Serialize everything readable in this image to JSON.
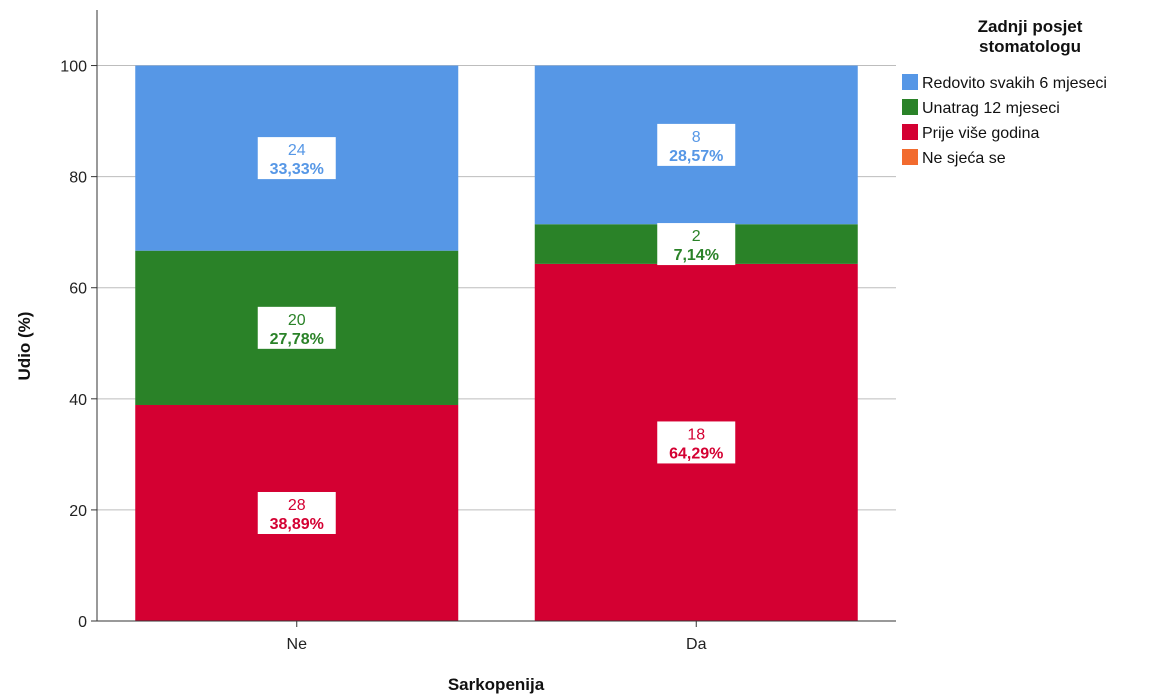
{
  "chart_data": {
    "type": "bar",
    "stacked": true,
    "categories": [
      "Ne",
      "Da"
    ],
    "xlabel": "Sarkopenija",
    "ylabel": "Udio (%)",
    "ylim": [
      0,
      110
    ],
    "yticks": [
      0,
      20,
      40,
      60,
      80,
      100
    ],
    "grid": true,
    "legend": {
      "title_lines": [
        "Zadnji posjet",
        "stomatologu"
      ],
      "placement": "right"
    },
    "series": [
      {
        "name": "Prije više godina",
        "color": "#D40032",
        "values": [
          38.89,
          64.29
        ],
        "counts": [
          "28",
          "18"
        ],
        "labels": [
          "38,89%",
          "64,29%"
        ]
      },
      {
        "name": "Unatrag 12 mjeseci",
        "color": "#2A8228",
        "values": [
          27.78,
          7.14
        ],
        "counts": [
          "20",
          "2"
        ],
        "labels": [
          "27,78%",
          "7,14%"
        ]
      },
      {
        "name": "Redovito svakih 6 mjeseci",
        "color": "#5697E6",
        "values": [
          33.33,
          28.57
        ],
        "counts": [
          "24",
          "8"
        ],
        "labels": [
          "33,33%",
          "28,57%"
        ]
      },
      {
        "name": "Ne sjeća se",
        "color": "#F26B2E",
        "values": [
          0,
          0
        ],
        "counts": [
          "",
          ""
        ],
        "labels": [
          "",
          ""
        ]
      }
    ],
    "legend_order": [
      2,
      1,
      0,
      3
    ]
  }
}
